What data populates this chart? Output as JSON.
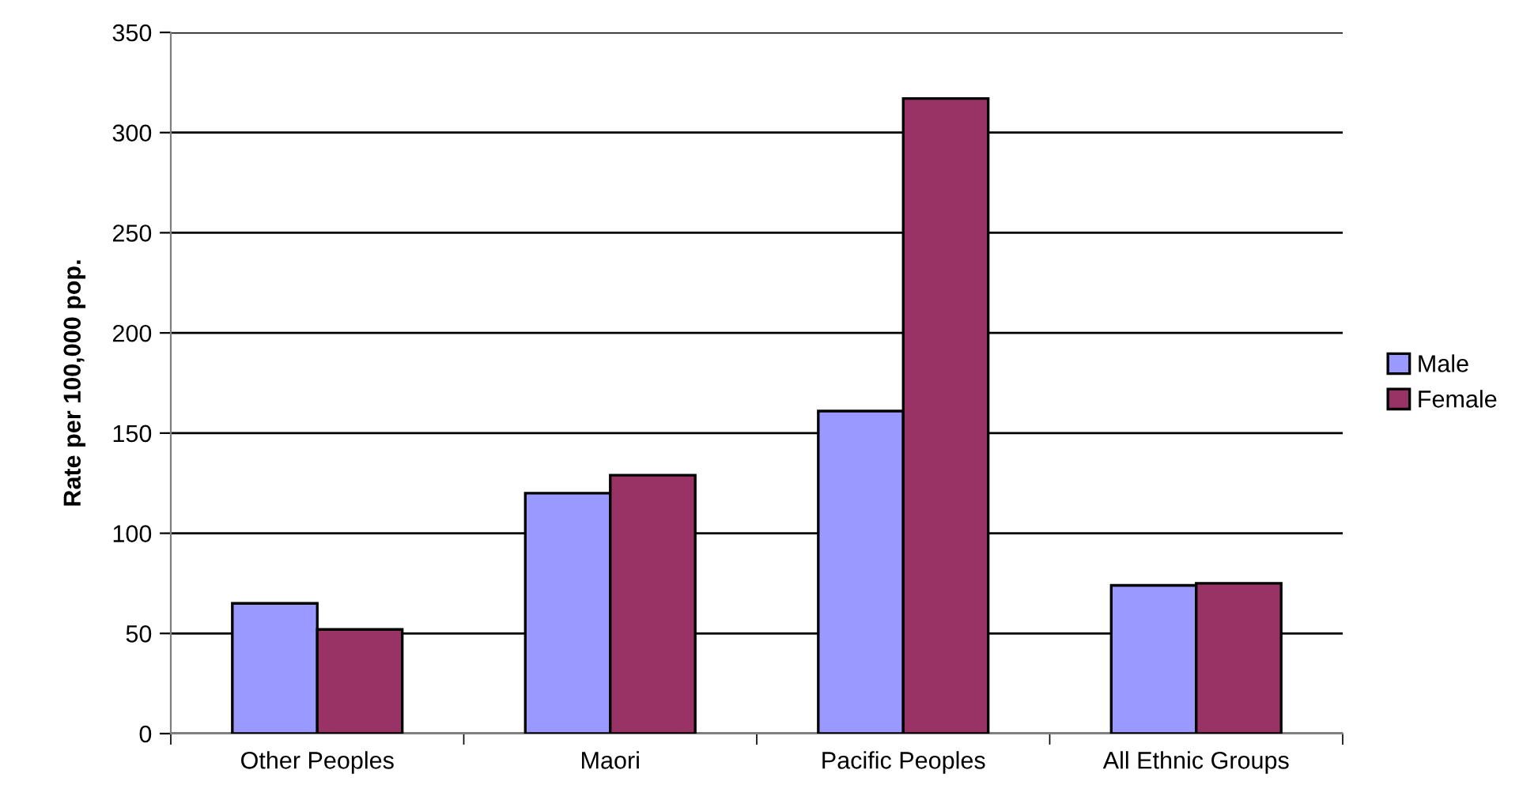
{
  "chart_data": {
    "type": "bar",
    "ylabel": "Rate per 100,000 pop.",
    "categories": [
      "Other Peoples",
      "Maori",
      "Pacific Peoples",
      "All Ethnic Groups"
    ],
    "series": [
      {
        "name": "Male",
        "color": "#9999ff",
        "values": [
          65,
          120,
          161,
          74
        ]
      },
      {
        "name": "Female",
        "color": "#993366",
        "values": [
          52,
          129,
          317,
          75
        ]
      }
    ],
    "ylim": [
      0,
      350
    ],
    "yticks": [
      0,
      50,
      100,
      150,
      200,
      250,
      300,
      350
    ],
    "grid": "y",
    "legend": "right"
  }
}
